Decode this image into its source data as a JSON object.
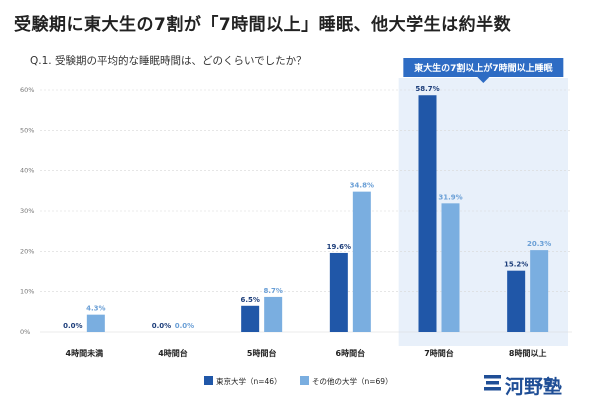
{
  "title": "受験期に東大生の7割が「7時間以上」睡眠、他大学生は約半数",
  "subtitle": "Q.1. 受験期の平均的な睡眠時間は、どのくらいでしたか？",
  "callout": "東大生の7割以上が7時間以上睡眠",
  "logo": "河野塾",
  "colors": {
    "series1": "#2057a8",
    "series2": "#7aaee0",
    "highlight": "#e8f0fa",
    "callout": "#2e6cc4",
    "grid": "#d8d8d8"
  },
  "chart_data": {
    "type": "bar",
    "categories": [
      "4時間未満",
      "4時間台",
      "5時間台",
      "6時間台",
      "7時間台",
      "8時間以上"
    ],
    "series": [
      {
        "name": "東京大学（n=46）",
        "values": [
          0.0,
          0.0,
          6.5,
          19.6,
          58.7,
          15.2
        ],
        "labels": [
          "0.0%",
          "0.0%",
          "6.5%",
          "19.6%",
          "58.7%",
          "15.2%"
        ]
      },
      {
        "name": "その他の大学（n=69）",
        "values": [
          4.3,
          0.0,
          8.7,
          34.8,
          31.9,
          20.3
        ],
        "labels": [
          "4.3%",
          "0.0%",
          "8.7%",
          "34.8%",
          "31.9%",
          "20.3%"
        ]
      }
    ],
    "ylim": [
      0,
      60
    ],
    "yticks": [
      0,
      10,
      20,
      30,
      40,
      50,
      60
    ],
    "ytick_labels": [
      "0%",
      "10%",
      "20%",
      "30%",
      "40%",
      "50%",
      "60%"
    ],
    "grid": true,
    "legend_position": "bottom",
    "highlighted_category": "7時間台"
  }
}
